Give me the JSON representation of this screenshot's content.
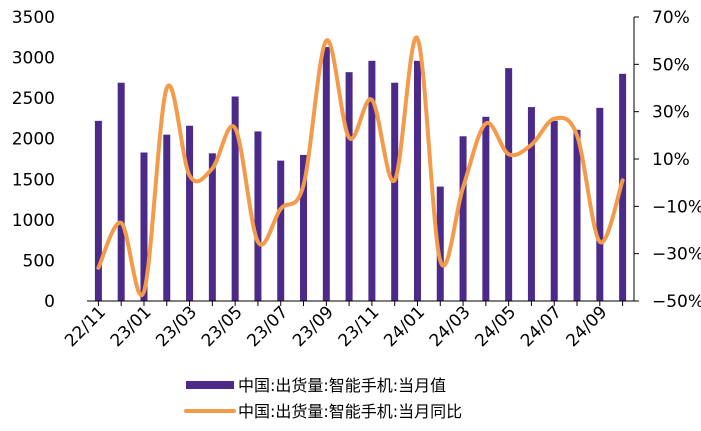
{
  "chart_data": {
    "type": "bar+line",
    "categories": [
      "22/11",
      "22/12",
      "23/01",
      "23/02",
      "23/03",
      "23/04",
      "23/05",
      "23/06",
      "23/07",
      "23/08",
      "23/09",
      "23/10",
      "23/11",
      "23/12",
      "24/01",
      "24/02",
      "24/03",
      "24/04",
      "24/05",
      "24/06",
      "24/07",
      "24/08",
      "24/09",
      "24/10"
    ],
    "x_tick_labels": [
      "22/11",
      "23/01",
      "23/03",
      "23/05",
      "23/07",
      "23/09",
      "23/11",
      "24/01",
      "24/03",
      "24/05",
      "24/07",
      "24/09"
    ],
    "series": [
      {
        "name": "中国:出货量:智能手机:当月值",
        "type": "bar",
        "axis": "left",
        "color": "#4B2A8A",
        "values": [
          2220,
          2690,
          1830,
          2050,
          2160,
          1820,
          2520,
          2090,
          1730,
          1800,
          3130,
          2820,
          2960,
          2690,
          2960,
          1410,
          2030,
          2270,
          2870,
          2390,
          2220,
          2110,
          2380,
          2800
        ]
      },
      {
        "name": "中国:出货量:智能手机:当月同比",
        "type": "line",
        "axis": "right",
        "color": "#F39B4B",
        "values": [
          -36,
          -17,
          -46,
          40,
          3,
          6,
          23,
          -25,
          -11,
          -1,
          60,
          19,
          35,
          1,
          61,
          -33,
          -2,
          25,
          12,
          16,
          27,
          20,
          -25,
          1
        ]
      }
    ],
    "y_left": {
      "ylim": [
        0,
        3500
      ],
      "ticks": [
        0,
        500,
        1000,
        1500,
        2000,
        2500,
        3000,
        3500
      ]
    },
    "y_right": {
      "ylim": [
        -50,
        70
      ],
      "ticks": [
        -50,
        -30,
        -10,
        10,
        30,
        50,
        70
      ],
      "tick_labels": [
        "−50%",
        "−30%",
        "−10%",
        "10%",
        "30%",
        "50%",
        "70%"
      ]
    },
    "legend_position": "bottom",
    "grid": false
  }
}
